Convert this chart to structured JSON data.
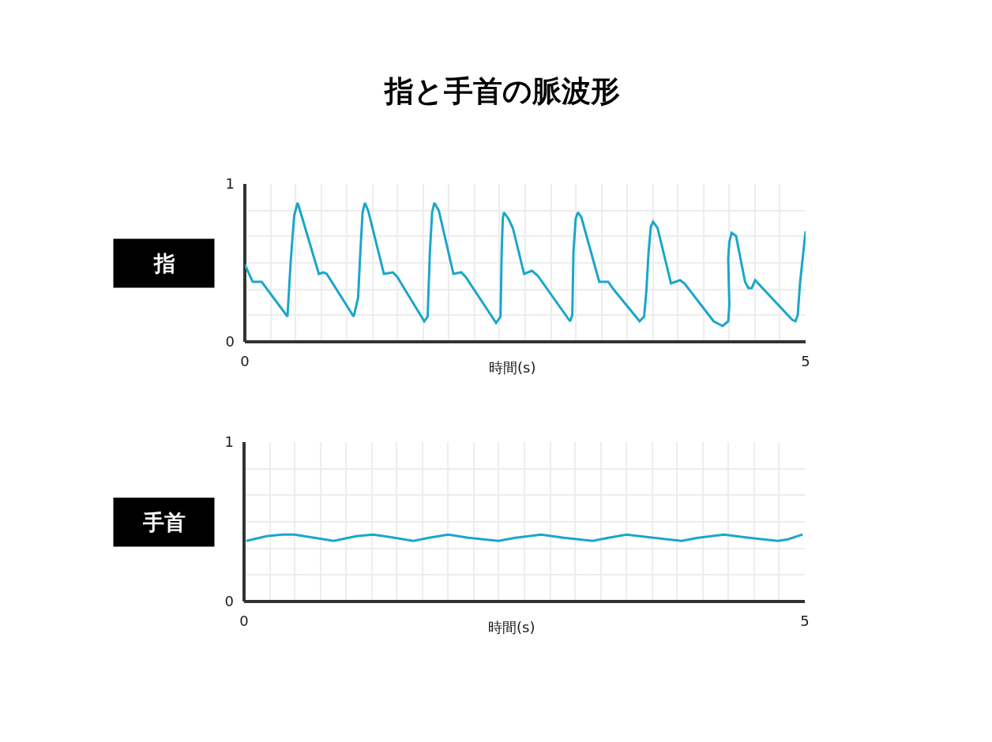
{
  "chart_data": [
    {
      "type": "line",
      "title": "指と手首の脈波形",
      "xlabel": "時間(s)",
      "xlim": [
        0,
        5
      ],
      "ylim": [
        0,
        1
      ],
      "xticks": [
        0,
        {
          "value": 0.23,
          "label": null
        },
        {
          "value": 0.45,
          "label": null
        },
        {
          "value": 0.68,
          "label": null
        },
        {
          "value": 0.91,
          "label": null
        },
        {
          "value": 1.14,
          "label": null
        },
        {
          "value": 1.36,
          "label": null
        },
        {
          "value": 1.59,
          "label": null
        },
        {
          "value": 1.82,
          "label": null
        },
        {
          "value": 2.05,
          "label": null
        },
        {
          "value": 2.27,
          "label": null
        },
        {
          "value": 2.5,
          "label": null
        },
        {
          "value": 2.73,
          "label": null
        },
        {
          "value": 2.95,
          "label": null
        },
        {
          "value": 3.18,
          "label": null
        },
        {
          "value": 3.41,
          "label": null
        },
        {
          "value": 3.64,
          "label": null
        },
        {
          "value": 3.86,
          "label": null
        },
        {
          "value": 4.09,
          "label": null
        },
        {
          "value": 4.32,
          "label": null
        },
        {
          "value": 4.55,
          "label": null
        },
        {
          "value": 4.77,
          "label": null
        },
        5
      ],
      "yticks": [
        0,
        {
          "value": 0.17,
          "label": null
        },
        {
          "value": 0.33,
          "label": null
        },
        {
          "value": 0.5,
          "label": null
        },
        {
          "value": 0.67,
          "label": null
        },
        {
          "value": 0.83,
          "label": null
        },
        1
      ],
      "grid": true,
      "series": [
        {
          "name": "指",
          "color": "#19a7c9",
          "x": [
            0.0,
            0.07,
            0.15,
            0.38,
            0.41,
            0.44,
            0.47,
            0.48,
            0.66,
            0.7,
            0.73,
            0.97,
            1.01,
            1.03,
            1.05,
            1.07,
            1.1,
            1.24,
            1.32,
            1.36,
            1.6,
            1.63,
            1.65,
            1.67,
            1.69,
            1.73,
            1.86,
            1.93,
            1.97,
            2.24,
            2.28,
            2.29,
            2.3,
            2.31,
            2.35,
            2.39,
            2.49,
            2.56,
            2.61,
            2.9,
            2.92,
            2.93,
            2.95,
            2.97,
            3.0,
            3.16,
            3.24,
            3.29,
            3.52,
            3.56,
            3.58,
            3.6,
            3.62,
            3.64,
            3.68,
            3.8,
            3.88,
            3.92,
            4.18,
            4.26,
            4.31,
            4.32,
            4.31,
            4.32,
            4.34,
            4.38,
            4.46,
            4.49,
            4.52,
            4.55,
            4.88,
            4.91,
            4.93,
            4.95,
            4.98,
            5.0
          ],
          "values": [
            0.49,
            0.38,
            0.38,
            0.16,
            0.52,
            0.8,
            0.88,
            0.86,
            0.43,
            0.44,
            0.43,
            0.16,
            0.28,
            0.57,
            0.82,
            0.88,
            0.83,
            0.43,
            0.44,
            0.41,
            0.13,
            0.16,
            0.57,
            0.82,
            0.88,
            0.83,
            0.43,
            0.44,
            0.41,
            0.12,
            0.16,
            0.57,
            0.78,
            0.82,
            0.78,
            0.72,
            0.43,
            0.45,
            0.42,
            0.13,
            0.17,
            0.57,
            0.78,
            0.82,
            0.79,
            0.38,
            0.38,
            0.33,
            0.13,
            0.16,
            0.32,
            0.57,
            0.73,
            0.76,
            0.72,
            0.37,
            0.39,
            0.37,
            0.13,
            0.1,
            0.13,
            0.23,
            0.53,
            0.63,
            0.69,
            0.67,
            0.38,
            0.34,
            0.34,
            0.39,
            0.14,
            0.13,
            0.17,
            0.37,
            0.57,
            0.7
          ]
        }
      ]
    },
    {
      "type": "line",
      "xlabel": "時間(s)",
      "xlim": [
        0,
        5
      ],
      "ylim": [
        0,
        1
      ],
      "xticks": [
        0,
        {
          "value": 0.23,
          "label": null
        },
        {
          "value": 0.45,
          "label": null
        },
        {
          "value": 0.68,
          "label": null
        },
        {
          "value": 0.91,
          "label": null
        },
        {
          "value": 1.14,
          "label": null
        },
        {
          "value": 1.36,
          "label": null
        },
        {
          "value": 1.59,
          "label": null
        },
        {
          "value": 1.82,
          "label": null
        },
        {
          "value": 2.05,
          "label": null
        },
        {
          "value": 2.27,
          "label": null
        },
        {
          "value": 2.5,
          "label": null
        },
        {
          "value": 2.73,
          "label": null
        },
        {
          "value": 2.95,
          "label": null
        },
        {
          "value": 3.18,
          "label": null
        },
        {
          "value": 3.41,
          "label": null
        },
        {
          "value": 3.64,
          "label": null
        },
        {
          "value": 3.86,
          "label": null
        },
        {
          "value": 4.09,
          "label": null
        },
        {
          "value": 4.32,
          "label": null
        },
        {
          "value": 4.55,
          "label": null
        },
        {
          "value": 4.77,
          "label": null
        },
        5
      ],
      "yticks": [
        0,
        {
          "value": 0.17,
          "label": null
        },
        {
          "value": 0.33,
          "label": null
        },
        {
          "value": 0.5,
          "label": null
        },
        {
          "value": 0.67,
          "label": null
        },
        {
          "value": 0.83,
          "label": null
        },
        1
      ],
      "grid": true,
      "series": [
        {
          "name": "手首",
          "color": "#19a7c9",
          "x": [
            0.02,
            0.2,
            0.34,
            0.45,
            0.8,
            1.0,
            1.15,
            1.25,
            1.51,
            1.65,
            1.82,
            2.0,
            2.27,
            2.42,
            2.65,
            2.85,
            3.11,
            3.25,
            3.41,
            3.65,
            3.9,
            4.05,
            4.28,
            4.5,
            4.76,
            4.85,
            4.98
          ],
          "values": [
            0.38,
            0.41,
            0.42,
            0.42,
            0.38,
            0.41,
            0.42,
            0.41,
            0.38,
            0.4,
            0.42,
            0.4,
            0.38,
            0.4,
            0.42,
            0.4,
            0.38,
            0.4,
            0.42,
            0.4,
            0.38,
            0.4,
            0.42,
            0.4,
            0.38,
            0.39,
            0.42
          ]
        }
      ]
    }
  ]
}
